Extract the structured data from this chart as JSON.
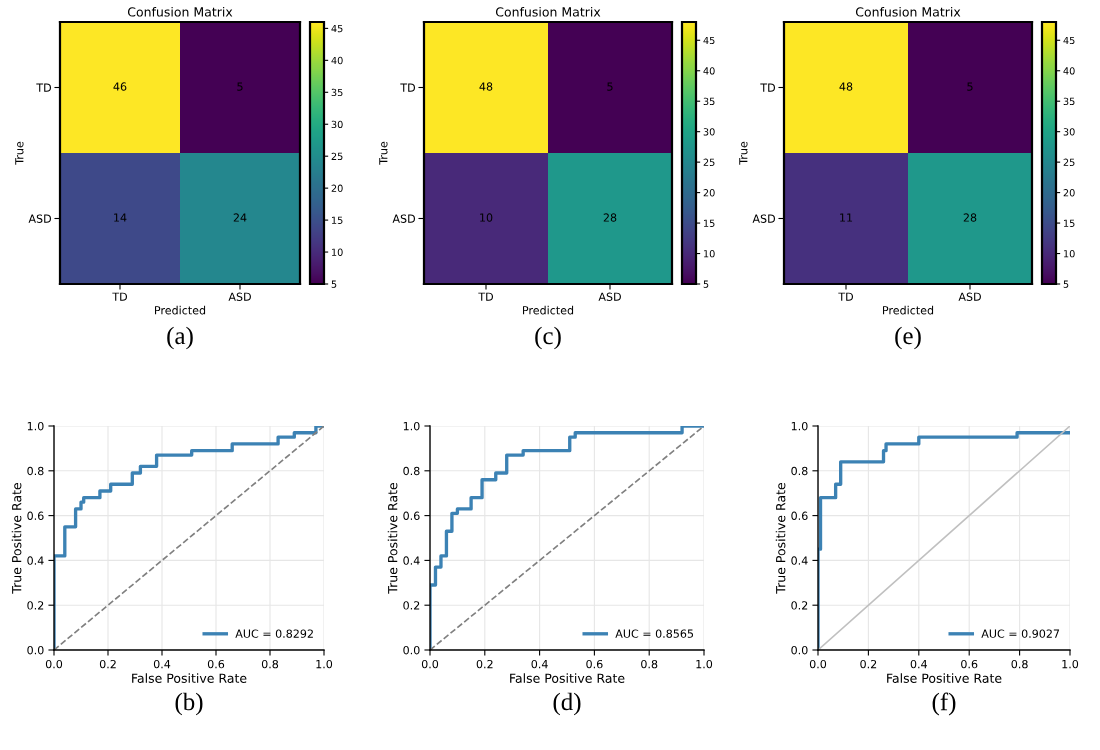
{
  "chart_data": [
    {
      "type": "heatmap",
      "title": "Confusion Matrix",
      "xlabel": "Predicted",
      "ylabel": "True",
      "categories": [
        "TD",
        "ASD"
      ],
      "y_categories": [
        "TD",
        "ASD"
      ],
      "cells": [
        [
          46,
          5
        ],
        [
          14,
          24
        ]
      ],
      "data_labels": true,
      "clim": [
        5,
        46
      ],
      "cticks": [
        5,
        10,
        15,
        20,
        25,
        30,
        35,
        40,
        45
      ],
      "annotations": [
        "(a)"
      ]
    },
    {
      "type": "heatmap",
      "title": "Confusion Matrix",
      "xlabel": "Predicted",
      "ylabel": "True",
      "categories": [
        "TD",
        "ASD"
      ],
      "y_categories": [
        "TD",
        "ASD"
      ],
      "cells": [
        [
          48,
          5
        ],
        [
          10,
          28
        ]
      ],
      "data_labels": true,
      "clim": [
        5,
        48
      ],
      "cticks": [
        5,
        10,
        15,
        20,
        25,
        30,
        35,
        40,
        45
      ],
      "annotations": [
        "(c)"
      ]
    },
    {
      "type": "heatmap",
      "title": "Confusion Matrix",
      "xlabel": "Predicted",
      "ylabel": "True",
      "categories": [
        "TD",
        "ASD"
      ],
      "y_categories": [
        "TD",
        "ASD"
      ],
      "cells": [
        [
          48,
          5
        ],
        [
          11,
          28
        ]
      ],
      "data_labels": true,
      "clim": [
        5,
        48
      ],
      "cticks": [
        5,
        10,
        15,
        20,
        25,
        30,
        35,
        40,
        45
      ],
      "annotations": [
        "(e)"
      ]
    },
    {
      "type": "line",
      "xlabel": "False Positive Rate",
      "ylabel": "True Positive Rate",
      "xlim": [
        0,
        1
      ],
      "ylim": [
        0,
        1
      ],
      "xticks": [
        {
          "value": 0,
          "label": "0.0"
        },
        {
          "value": 0.2,
          "label": "0.2"
        },
        {
          "value": 0.4,
          "label": "0.4"
        },
        {
          "value": 0.6,
          "label": "0.6"
        },
        {
          "value": 0.8,
          "label": "0.8"
        },
        {
          "value": 1,
          "label": "1.0"
        }
      ],
      "yticks": [
        {
          "value": 0,
          "label": "0.0"
        },
        {
          "value": 0.2,
          "label": "0.2"
        },
        {
          "value": 0.4,
          "label": "0.4"
        },
        {
          "value": 0.6,
          "label": "0.6"
        },
        {
          "value": 0.8,
          "label": "0.8"
        },
        {
          "value": 1,
          "label": "1.0"
        }
      ],
      "grid": true,
      "legend": "bottom right",
      "annotations": [
        "(b)"
      ],
      "series": [
        {
          "name": "AUC = 0.8292",
          "color": "#3c82b4",
          "line_style": "solid",
          "x": [
            0,
            0,
            0.04,
            0.04,
            0.08,
            0.08,
            0.1,
            0.1,
            0.11,
            0.11,
            0.17,
            0.17,
            0.21,
            0.21,
            0.29,
            0.29,
            0.32,
            0.32,
            0.38,
            0.38,
            0.51,
            0.51,
            0.66,
            0.66,
            0.83,
            0.83,
            0.89,
            0.89,
            0.97,
            0.97,
            1.0
          ],
          "values": [
            0,
            0.42,
            0.42,
            0.55,
            0.55,
            0.63,
            0.63,
            0.66,
            0.66,
            0.68,
            0.68,
            0.71,
            0.71,
            0.74,
            0.74,
            0.79,
            0.79,
            0.82,
            0.82,
            0.87,
            0.87,
            0.89,
            0.89,
            0.92,
            0.92,
            0.95,
            0.95,
            0.97,
            0.97,
            1.0,
            1.0
          ]
        },
        {
          "color": "#808080",
          "line_style": "dashed",
          "x": [
            0,
            1
          ],
          "values": [
            0,
            1
          ]
        }
      ]
    },
    {
      "type": "line",
      "xlabel": "False Positive Rate",
      "ylabel": "True Positive Rate",
      "xlim": [
        0,
        1
      ],
      "ylim": [
        0,
        1
      ],
      "xticks": [
        {
          "value": 0,
          "label": "0.0"
        },
        {
          "value": 0.2,
          "label": "0.2"
        },
        {
          "value": 0.4,
          "label": "0.4"
        },
        {
          "value": 0.6,
          "label": "0.6"
        },
        {
          "value": 0.8,
          "label": "0.8"
        },
        {
          "value": 1,
          "label": "1.0"
        }
      ],
      "yticks": [
        {
          "value": 0,
          "label": "0.0"
        },
        {
          "value": 0.2,
          "label": "0.2"
        },
        {
          "value": 0.4,
          "label": "0.4"
        },
        {
          "value": 0.6,
          "label": "0.6"
        },
        {
          "value": 0.8,
          "label": "0.8"
        },
        {
          "value": 1,
          "label": "1.0"
        }
      ],
      "grid": true,
      "legend": "bottom right",
      "annotations": [
        "(d)"
      ],
      "series": [
        {
          "name": "AUC = 0.8565",
          "color": "#3c82b4",
          "line_style": "solid",
          "x": [
            0,
            0,
            0.02,
            0.02,
            0.04,
            0.04,
            0.06,
            0.06,
            0.08,
            0.08,
            0.1,
            0.1,
            0.15,
            0.15,
            0.19,
            0.19,
            0.24,
            0.24,
            0.28,
            0.28,
            0.34,
            0.34,
            0.51,
            0.51,
            0.53,
            0.53,
            0.92,
            0.92,
            1.0
          ],
          "values": [
            0,
            0.29,
            0.29,
            0.37,
            0.37,
            0.42,
            0.42,
            0.53,
            0.53,
            0.61,
            0.61,
            0.63,
            0.63,
            0.68,
            0.68,
            0.76,
            0.76,
            0.79,
            0.79,
            0.87,
            0.87,
            0.89,
            0.89,
            0.95,
            0.95,
            0.97,
            0.97,
            1.0,
            1.0
          ]
        },
        {
          "color": "#808080",
          "line_style": "dashed",
          "x": [
            0,
            1
          ],
          "values": [
            0,
            1
          ]
        }
      ]
    },
    {
      "type": "line",
      "xlabel": "False Positive Rate",
      "ylabel": "True Positive Rate",
      "xlim": [
        0,
        1
      ],
      "ylim": [
        0,
        1
      ],
      "xticks": [
        {
          "value": 0,
          "label": "0.0"
        },
        {
          "value": 0.2,
          "label": "0.2"
        },
        {
          "value": 0.4,
          "label": "0.4"
        },
        {
          "value": 0.6,
          "label": "0.6"
        },
        {
          "value": 0.8,
          "label": "0.8"
        },
        {
          "value": 1,
          "label": "1.0"
        }
      ],
      "yticks": [
        {
          "value": 0,
          "label": "0.0"
        },
        {
          "value": 0.2,
          "label": "0.2"
        },
        {
          "value": 0.4,
          "label": "0.4"
        },
        {
          "value": 0.6,
          "label": "0.6"
        },
        {
          "value": 0.8,
          "label": "0.8"
        },
        {
          "value": 1,
          "label": "1.0"
        }
      ],
      "grid": true,
      "legend": "bottom right",
      "annotations": [
        "(f)"
      ],
      "series": [
        {
          "name": "AUC = 0.9027",
          "color": "#3c82b4",
          "line_style": "solid",
          "x": [
            0,
            0,
            0.01,
            0.01,
            0.07,
            0.07,
            0.09,
            0.09,
            0.26,
            0.26,
            0.27,
            0.27,
            0.4,
            0.4,
            0.79,
            0.79,
            1.0
          ],
          "values": [
            0,
            0.45,
            0.45,
            0.68,
            0.68,
            0.74,
            0.74,
            0.84,
            0.84,
            0.89,
            0.89,
            0.92,
            0.92,
            0.95,
            0.95,
            0.97,
            0.97
          ]
        },
        {
          "color": "#c0c0c0",
          "line_style": "solid",
          "x": [
            0,
            1
          ],
          "values": [
            0,
            1
          ]
        }
      ]
    }
  ]
}
